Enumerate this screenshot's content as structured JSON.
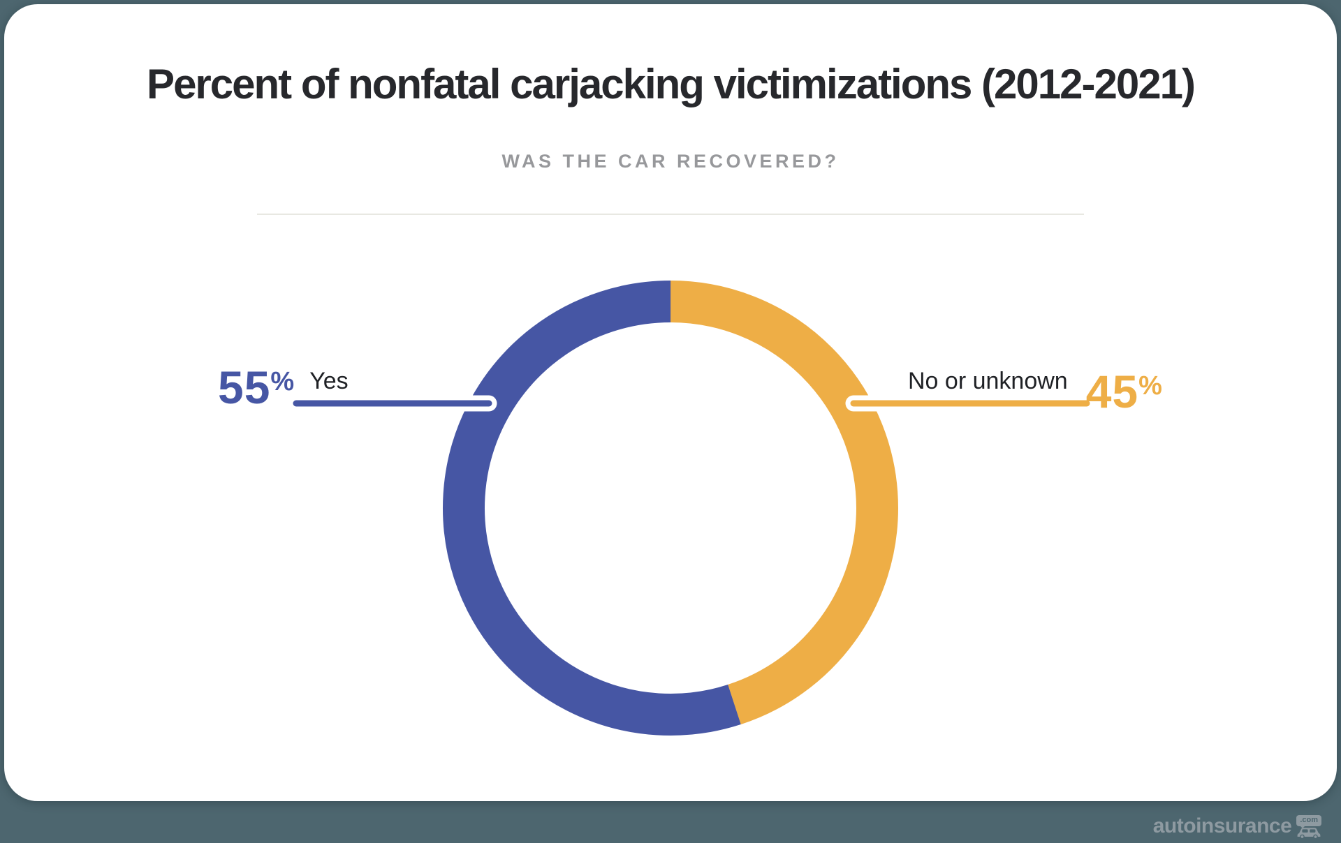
{
  "page": {
    "background_color": "#4D666F",
    "card_color": "#FFFFFF",
    "divider_color": "#E8E8E2"
  },
  "header": {
    "title": "Percent of nonfatal carjacking victimizations (2012-2021)",
    "subtitle": "WAS THE CAR RECOVERED?"
  },
  "chart_data": {
    "type": "pie",
    "donut": true,
    "title": "Percent of nonfatal carjacking victimizations (2012-2021)",
    "subtitle": "WAS THE CAR RECOVERED?",
    "start_angle_deg": 0,
    "direction": "clockwise",
    "legend_position": "callout-lines",
    "slices": [
      {
        "label": "No or unknown",
        "value": 45,
        "display_value": "45",
        "percent_sign": "%",
        "color": "#EEAE46",
        "label_side": "right"
      },
      {
        "label": "Yes",
        "value": 55,
        "display_value": "55",
        "percent_sign": "%",
        "color": "#4656A4",
        "label_side": "left"
      }
    ]
  },
  "callouts": {
    "left": {
      "value": "55",
      "sign": "%",
      "label": "Yes"
    },
    "right": {
      "value": "45",
      "sign": "%",
      "label": "No or unknown"
    }
  },
  "watermark": {
    "brand": "autoinsurance",
    "bubble_text": ".com",
    "color": "#8E9AA1"
  }
}
